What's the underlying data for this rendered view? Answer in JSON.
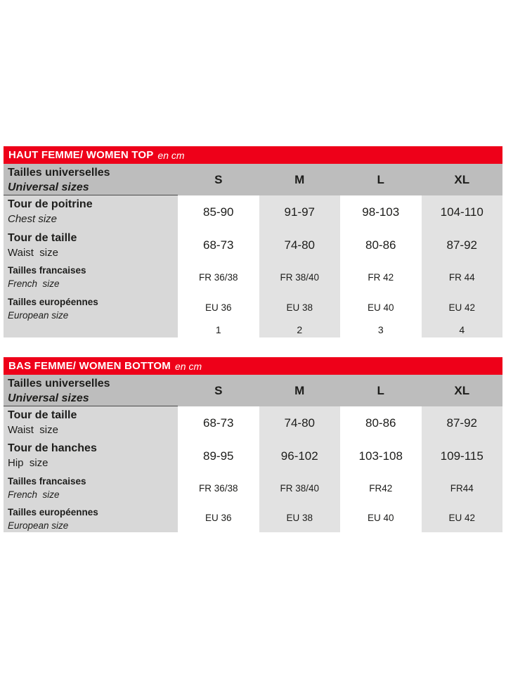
{
  "colors": {
    "accent_red": "#ee0019",
    "header_gray": "#bdbdbd",
    "label_gray": "#d8d8d8",
    "alt_column_gray": "#e2e2e2",
    "text": "#1d1d1b"
  },
  "tables": [
    {
      "title": "HAUT FEMME/ WOMEN TOP",
      "unit": "en cm",
      "header": {
        "label_fr": "Tailles universelles",
        "label_en": "Universal sizes",
        "sizes": [
          "S",
          "M",
          "L",
          "XL"
        ]
      },
      "rows": [
        {
          "label_fr": "Tour de poitrine",
          "label_en": "Chest size",
          "values": [
            "85-90",
            "91-97",
            "98-103",
            "104-110"
          ]
        },
        {
          "label_fr": "Tour de taille",
          "label_en": "Waist  size",
          "values": [
            "68-73",
            "74-80",
            "80-86",
            "87-92"
          ]
        },
        {
          "label_fr": "Tailles francaises",
          "label_en": "French  size",
          "values": [
            "FR 36/38",
            "FR 38/40",
            "FR 42",
            "FR 44"
          ]
        },
        {
          "label_fr": "Tailles européennes",
          "label_en": "European size",
          "values": [
            "EU 36",
            "EU 38",
            "EU 40",
            "EU 42"
          ]
        },
        {
          "label_fr": "",
          "label_en": "",
          "values": [
            "1",
            "2",
            "3",
            "4"
          ]
        }
      ]
    },
    {
      "title": "BAS FEMME/ WOMEN BOTTOM",
      "unit": "en cm",
      "header": {
        "label_fr": "Tailles universelles",
        "label_en": "Universal sizes",
        "sizes": [
          "S",
          "M",
          "L",
          "XL"
        ]
      },
      "rows": [
        {
          "label_fr": "Tour de taille",
          "label_en": "Waist  size",
          "values": [
            "68-73",
            "74-80",
            "80-86",
            "87-92"
          ]
        },
        {
          "label_fr": "Tour de hanches",
          "label_en": "Hip  size",
          "values": [
            "89-95",
            "96-102",
            "103-108",
            "109-115"
          ]
        },
        {
          "label_fr": "Tailles francaises",
          "label_en": "French  size",
          "values": [
            "FR 36/38",
            "FR 38/40",
            "FR42",
            "FR44"
          ]
        },
        {
          "label_fr": "Tailles européennes",
          "label_en": "European size",
          "values": [
            "EU 36",
            "EU 38",
            "EU 40",
            "EU 42"
          ]
        }
      ]
    }
  ]
}
